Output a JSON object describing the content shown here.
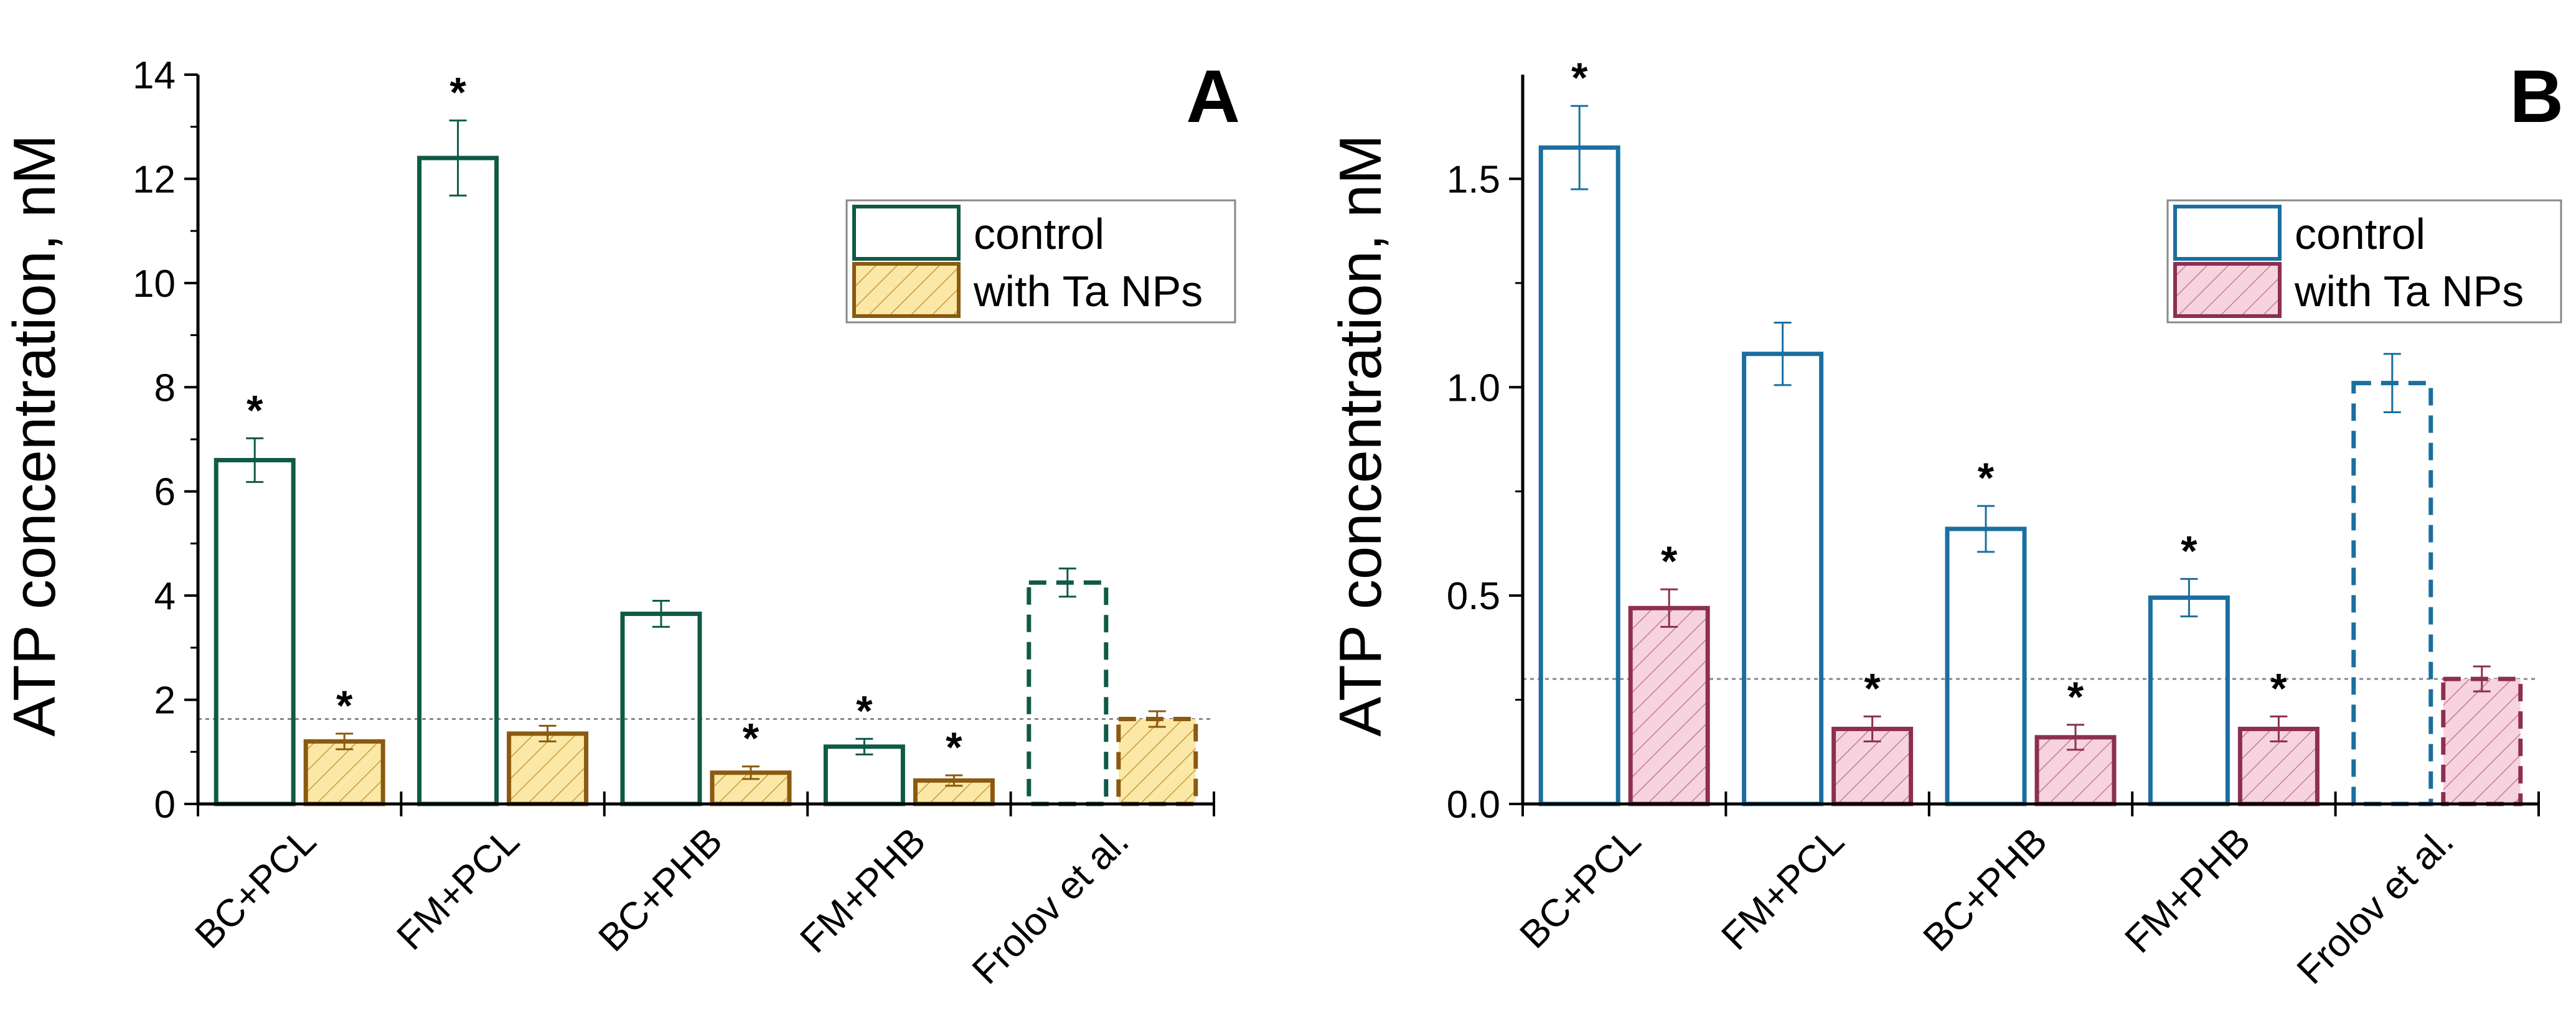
{
  "chart_data": [
    {
      "type": "bar",
      "panel_label": "A",
      "ylabel": "ATP concentration, nM",
      "ylim": [
        0,
        14
      ],
      "yticks": [
        "0",
        "2",
        "4",
        "6",
        "8",
        "10",
        "12",
        "14"
      ],
      "categories": [
        "BC+PCL",
        "FM+PCL",
        "BC+PHB",
        "FM+PHB",
        "Frolov et al."
      ],
      "series": [
        {
          "name": "control",
          "values": [
            6.6,
            12.4,
            3.65,
            1.1,
            4.25
          ],
          "errors": [
            0.42,
            0.72,
            0.25,
            0.15,
            0.27
          ],
          "significant": [
            true,
            true,
            false,
            true,
            false
          ]
        },
        {
          "name": "with Ta NPs",
          "values": [
            1.2,
            1.35,
            0.6,
            0.45,
            1.63
          ],
          "errors": [
            0.15,
            0.15,
            0.12,
            0.1,
            0.15
          ],
          "significant": [
            true,
            false,
            true,
            true,
            false
          ]
        }
      ],
      "reference_bar_style": "dashed",
      "reference_line_y": 1.63,
      "significance_marker": "*",
      "legend_position": "top-right",
      "colors": {
        "control_stroke": "#0f5a46",
        "ta_stroke": "#8a5a10",
        "ta_fill": "#fbe8a6",
        "ta_hatch": "#c99a3a"
      }
    },
    {
      "type": "bar",
      "panel_label": "B",
      "ylabel": "ATP concentration, nM",
      "ylim": [
        0,
        1.75
      ],
      "yticks": [
        "0.0",
        "0.5",
        "1.0",
        "1.5"
      ],
      "categories": [
        "BC+PCL",
        "FM+PCL",
        "BC+PHB",
        "FM+PHB",
        "Frolov et al."
      ],
      "series": [
        {
          "name": "control",
          "values": [
            1.575,
            1.08,
            0.66,
            0.495,
            1.01
          ],
          "errors": [
            0.1,
            0.075,
            0.055,
            0.045,
            0.07
          ],
          "significant": [
            true,
            false,
            true,
            true,
            false
          ]
        },
        {
          "name": "with Ta NPs",
          "values": [
            0.47,
            0.18,
            0.16,
            0.18,
            0.3
          ],
          "errors": [
            0.045,
            0.03,
            0.03,
            0.03,
            0.03
          ],
          "significant": [
            true,
            true,
            true,
            true,
            false
          ]
        }
      ],
      "reference_bar_style": "dashed",
      "reference_line_y": 0.3,
      "significance_marker": "*",
      "legend_position": "top-right",
      "colors": {
        "control_stroke": "#1a6fa0",
        "ta_stroke": "#8c2f52",
        "ta_fill": "#f6d3df",
        "ta_hatch": "#c77a98"
      }
    }
  ]
}
